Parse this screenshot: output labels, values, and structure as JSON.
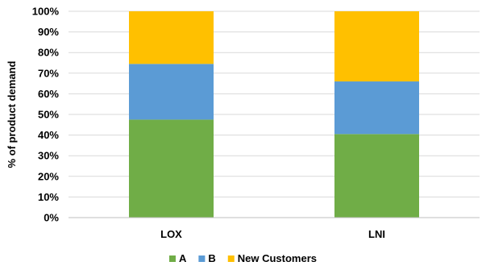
{
  "chart_data": {
    "type": "bar",
    "stacked": true,
    "percent_stacked": true,
    "categories": [
      "LOX",
      "LNI"
    ],
    "series": [
      {
        "name": "A",
        "values": [
          47.5,
          40.5
        ],
        "color": "#70ad47"
      },
      {
        "name": "B",
        "values": [
          27.0,
          25.5
        ],
        "color": "#5b9bd5"
      },
      {
        "name": "New Customers",
        "values": [
          25.5,
          34.0
        ],
        "color": "#ffc000"
      }
    ],
    "xlabel": "",
    "ylabel": "% of product demand",
    "ylim": [
      0,
      100
    ],
    "yticks": [
      "0%",
      "10%",
      "20%",
      "30%",
      "40%",
      "50%",
      "60%",
      "70%",
      "80%",
      "90%",
      "100%"
    ],
    "grid": true,
    "legend_position": "bottom"
  }
}
